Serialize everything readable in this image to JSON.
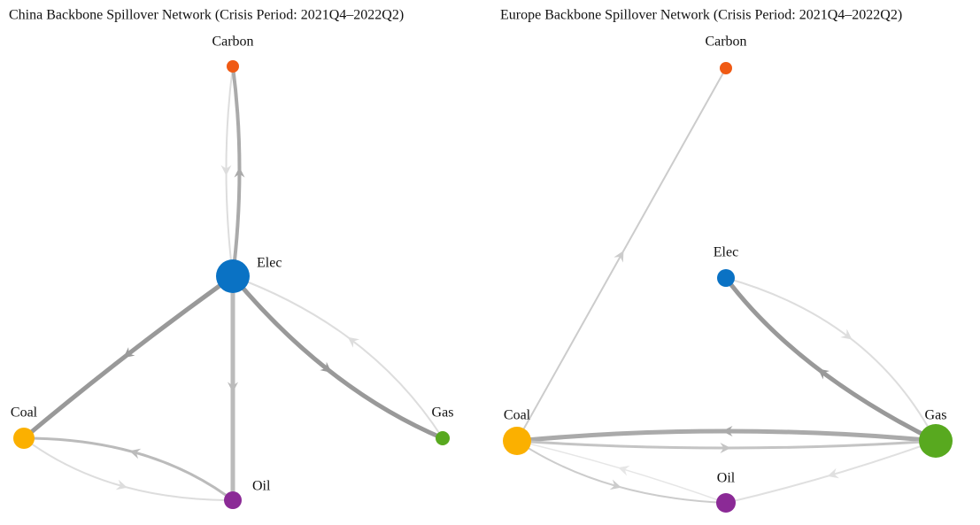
{
  "panels": [
    {
      "title": "China Backbone Spillover Network (Crisis Period: 2021Q4–2022Q2)",
      "nodes": [
        {
          "label": "Carbon"
        },
        {
          "label": "Elec"
        },
        {
          "label": "Coal"
        },
        {
          "label": "Gas"
        },
        {
          "label": "Oil"
        }
      ]
    },
    {
      "title": "Europe Backbone Spillover Network (Crisis Period: 2021Q4–2022Q2)",
      "nodes": [
        {
          "label": "Carbon"
        },
        {
          "label": "Elec"
        },
        {
          "label": "Coal"
        },
        {
          "label": "Gas"
        },
        {
          "label": "Oil"
        }
      ]
    }
  ]
}
